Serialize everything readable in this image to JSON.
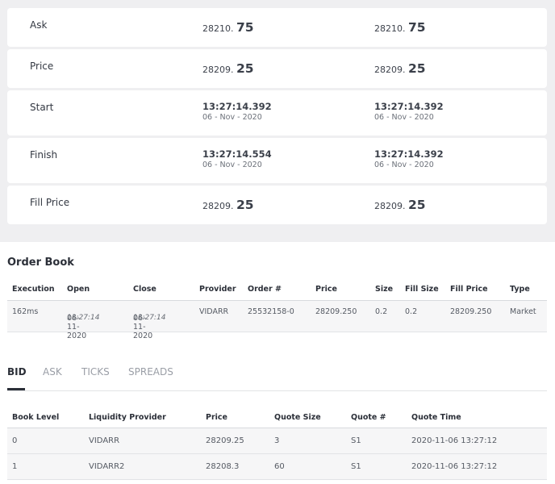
{
  "summary": {
    "rows": [
      {
        "label": "Ask",
        "left_int": "28210.",
        "left_dec": "75",
        "right_int": "28210.",
        "right_dec": "75"
      },
      {
        "label": "Price",
        "left_int": "28209.",
        "left_dec": "25",
        "right_int": "28209.",
        "right_dec": "25"
      },
      {
        "label": "Start",
        "left_time": "13:27:14.392",
        "left_date": "06 - Nov - 2020",
        "right_time": "13:27:14.392",
        "right_date": "06 - Nov - 2020"
      },
      {
        "label": "Finish",
        "left_time": "13:27:14.554",
        "left_date": "06 - Nov - 2020",
        "right_time": "13:27:14.392",
        "right_date": "06 - Nov - 2020"
      },
      {
        "label": "Fill Price",
        "left_int": "28209.",
        "left_dec": "25",
        "right_int": "28209.",
        "right_dec": "25"
      }
    ]
  },
  "order_book": {
    "title": "Order Book",
    "columns": [
      "Execution",
      "Open",
      "Close",
      "Provider",
      "Order #",
      "Price",
      "Size",
      "Fill Size",
      "Fill Price",
      "Type"
    ],
    "row": {
      "execution": "162ms",
      "open_date": "06-11-2020",
      "open_time": "13:27:14",
      "close_date": "06-11-2020",
      "close_time": "13:27:14",
      "provider": "VIDARR",
      "order_no": "25532158-0",
      "price": "28209.250",
      "size": "0.2",
      "fill_size": "0.2",
      "fill_price": "28209.250",
      "type": "Market"
    }
  },
  "tabs": [
    "BID",
    "ASK",
    "TICKS",
    "SPREADS"
  ],
  "bid_table": {
    "columns": [
      "Book Level",
      "Liquidity Provider",
      "Price",
      "Quote Size",
      "Quote #",
      "Quote Time"
    ],
    "rows": [
      {
        "level": "0",
        "provider": "VIDARR",
        "price": "28209.25",
        "size": "3",
        "quote": "S1",
        "time": "2020-11-06 13:27:12"
      },
      {
        "level": "1",
        "provider": "VIDARR2",
        "price": "28208.3",
        "size": "60",
        "quote": "S1",
        "time": "2020-11-06 13:27:12"
      }
    ]
  }
}
